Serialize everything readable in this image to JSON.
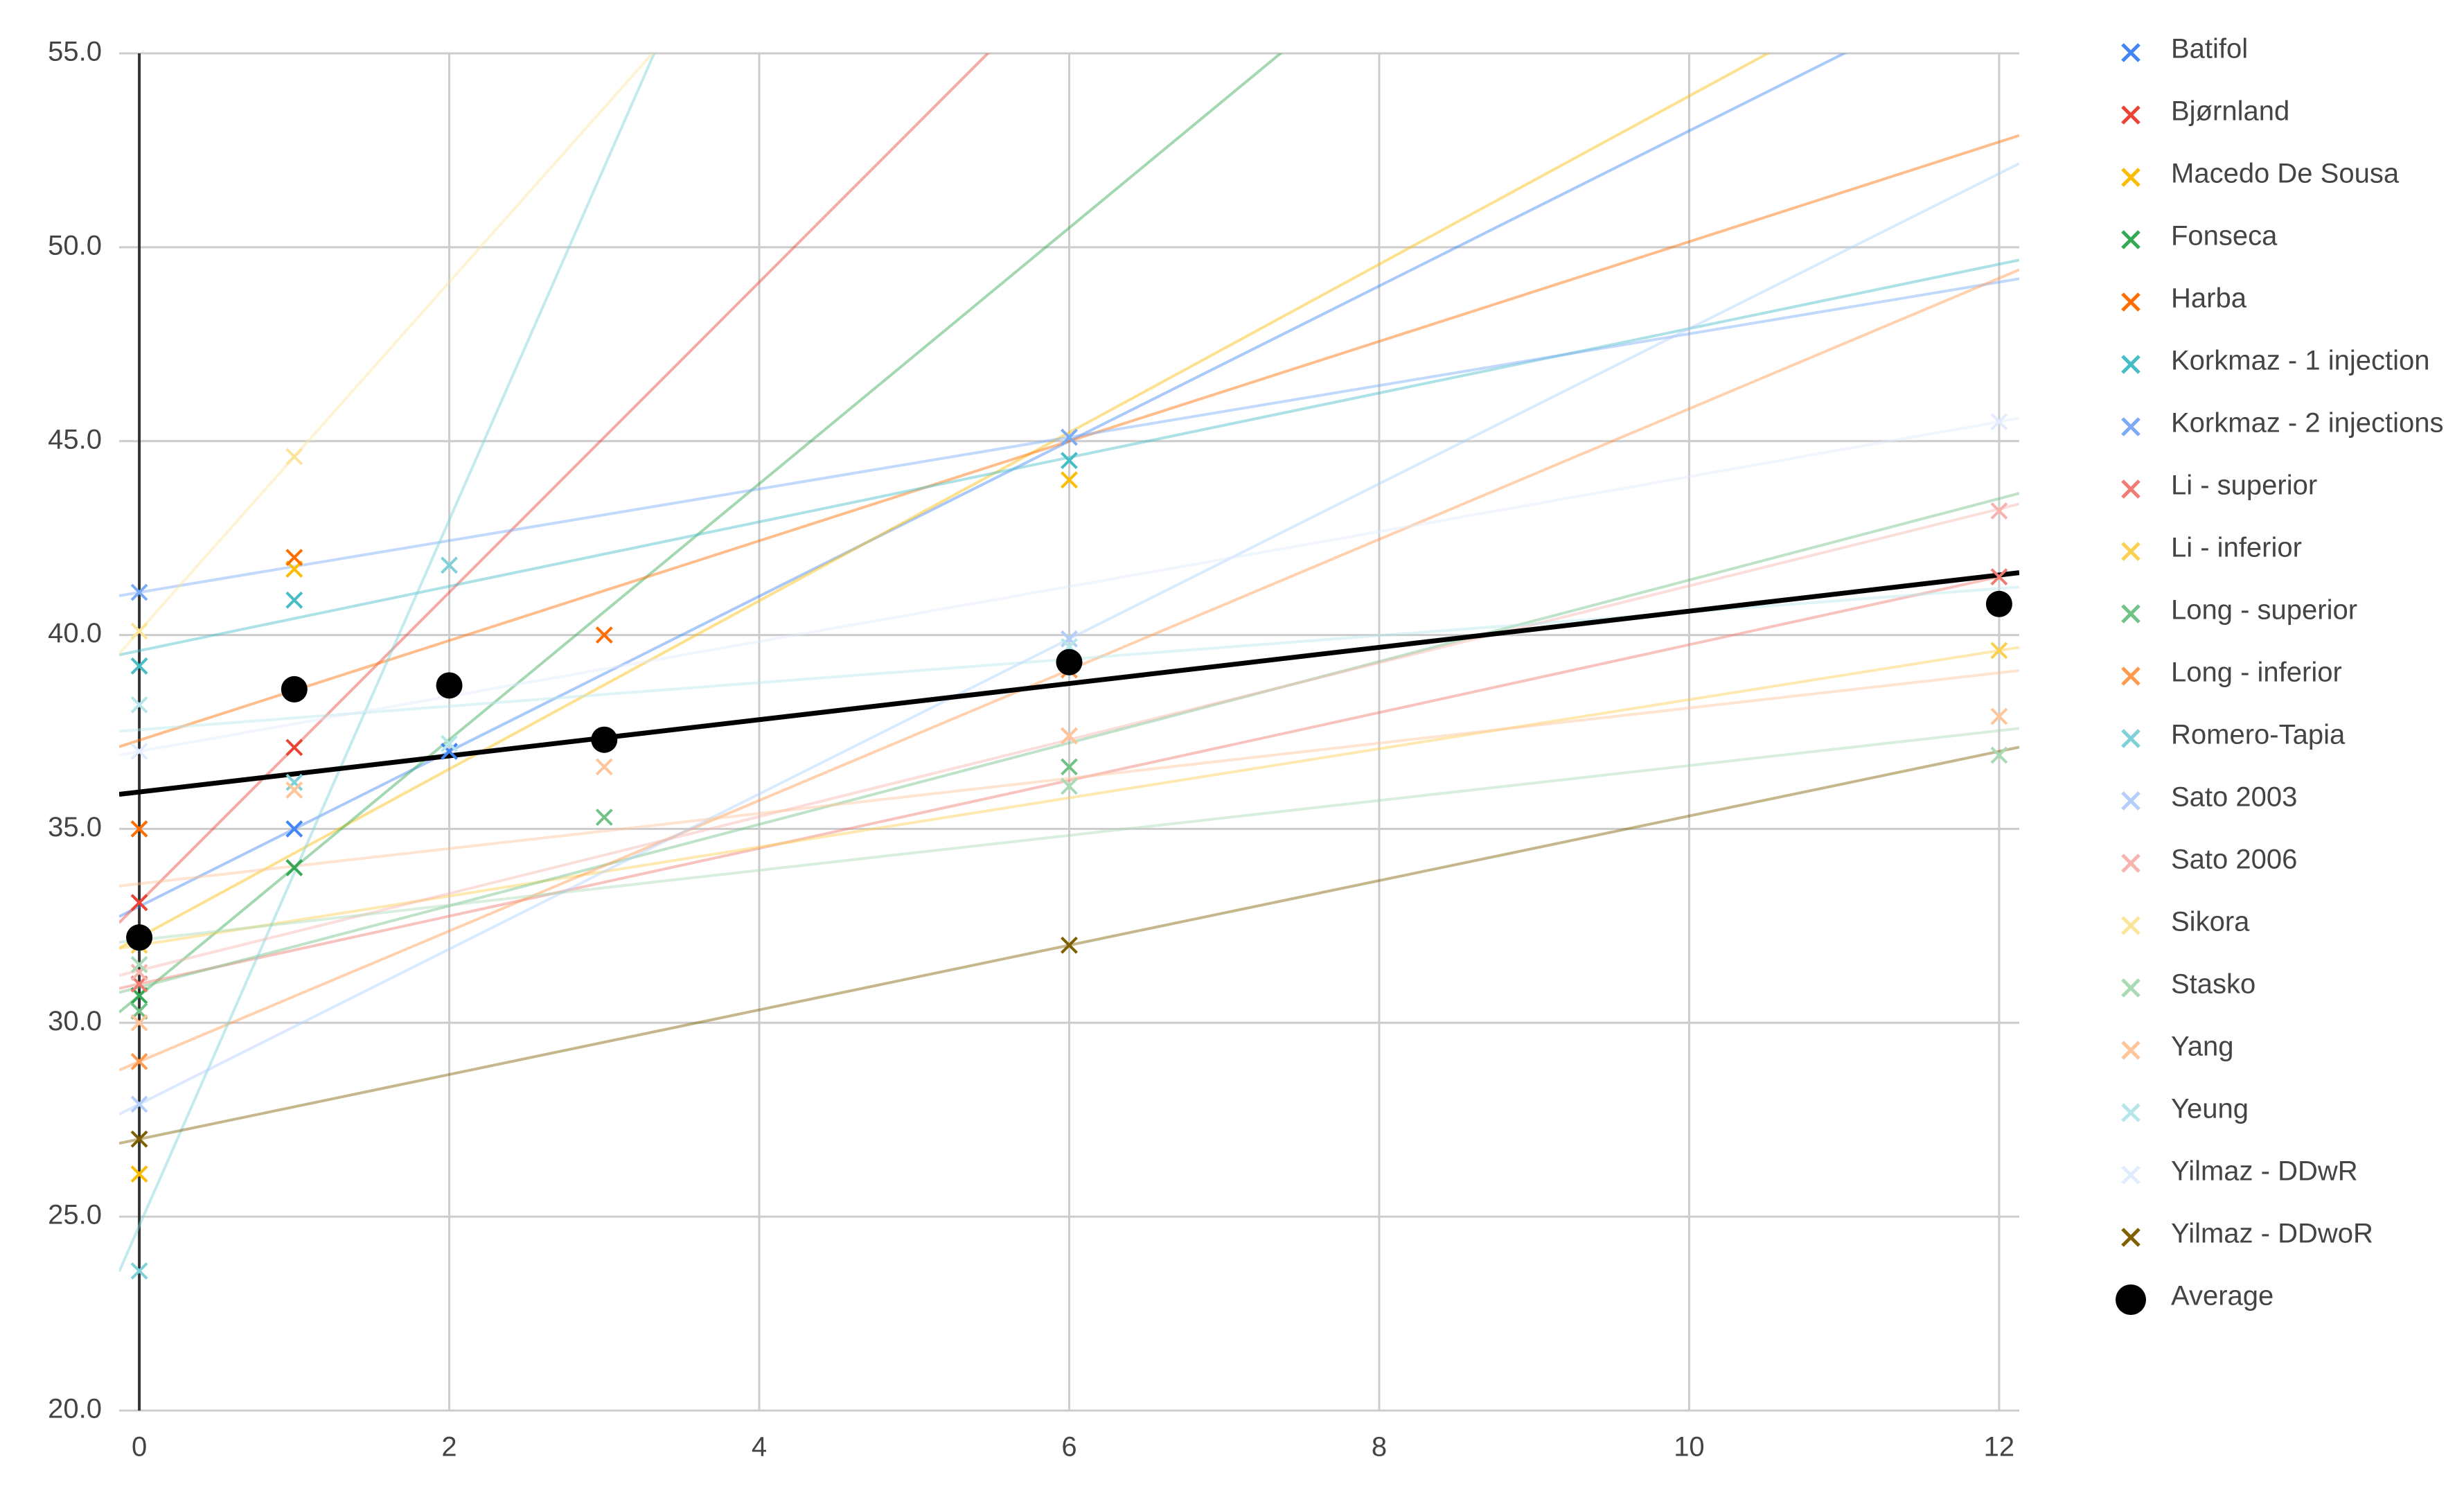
{
  "chart_data": {
    "type": "scatter",
    "trendlines": true,
    "grid": true,
    "legend": "right",
    "xlim": [
      -0.13,
      12.13
    ],
    "xticks": [
      0,
      2,
      4,
      6,
      8,
      10,
      12
    ],
    "ylim": [
      20,
      55
    ],
    "yticks": [
      {
        "value": 20,
        "label": "20.0"
      },
      {
        "value": 25,
        "label": "25.0"
      },
      {
        "value": 30,
        "label": "30.0"
      },
      {
        "value": 35,
        "label": "35.0"
      },
      {
        "value": 40,
        "label": "40.0"
      },
      {
        "value": 45,
        "label": "45.0"
      },
      {
        "value": 50,
        "label": "50.0"
      },
      {
        "value": 55,
        "label": "55.0"
      }
    ],
    "series": [
      {
        "name": "Batifol",
        "color": "#4285f4",
        "x": [
          1,
          2
        ],
        "values": [
          35.0,
          37.0
        ]
      },
      {
        "name": "Bjørnland",
        "color": "#ea4335",
        "x": [
          0,
          1
        ],
        "values": [
          33.1,
          37.1
        ]
      },
      {
        "name": "Macedo De Sousa",
        "color": "#fbbc04",
        "x": [
          0,
          1,
          6
        ],
        "values": [
          26.1,
          41.7,
          44.0
        ]
      },
      {
        "name": "Fonseca",
        "color": "#34a853",
        "x": [
          0,
          1
        ],
        "values": [
          30.7,
          34.0
        ]
      },
      {
        "name": "Harba",
        "color": "#ff6d01",
        "x": [
          0,
          1,
          3
        ],
        "values": [
          35.0,
          42.0,
          40.0
        ]
      },
      {
        "name": "Korkmaz - 1 injection",
        "color": "#46bdc6",
        "x": [
          0,
          1,
          6
        ],
        "values": [
          39.2,
          40.9,
          44.5
        ]
      },
      {
        "name": "Korkmaz - 2 injections",
        "color": "#7baaf7",
        "x": [
          0,
          6
        ],
        "values": [
          41.1,
          45.1
        ]
      },
      {
        "name": "Li - superior",
        "color": "#f07b72",
        "x": [
          0,
          12
        ],
        "values": [
          31.0,
          41.5
        ]
      },
      {
        "name": "Li - inferior",
        "color": "#fcd04f",
        "x": [
          0,
          12
        ],
        "values": [
          32.0,
          39.6
        ]
      },
      {
        "name": "Long - superior",
        "color": "#71c287",
        "x": [
          0,
          3,
          6
        ],
        "values": [
          30.3,
          35.3,
          36.6
        ]
      },
      {
        "name": "Long - inferior",
        "color": "#ff994d",
        "x": [
          0,
          6
        ],
        "values": [
          29.0,
          39.1
        ]
      },
      {
        "name": "Romero-Tapia",
        "color": "#7ed1d7",
        "x": [
          0,
          1,
          2
        ],
        "values": [
          23.6,
          36.2,
          41.8
        ]
      },
      {
        "name": "Sato 2003",
        "color": "#b3cefb",
        "x": [
          0,
          6
        ],
        "values": [
          27.9,
          39.9
        ]
      },
      {
        "name": "Sato 2006",
        "color": "#f7b4ae",
        "x": [
          0,
          6,
          12
        ],
        "values": [
          31.3,
          37.4,
          43.2
        ]
      },
      {
        "name": "Sikora",
        "color": "#fde49b",
        "x": [
          0,
          1
        ],
        "values": [
          40.1,
          44.6
        ]
      },
      {
        "name": "Stasko",
        "color": "#a8dab5",
        "x": [
          0,
          6,
          12
        ],
        "values": [
          31.5,
          36.1,
          36.9
        ]
      },
      {
        "name": "Yang",
        "color": "#ffc599",
        "x": [
          0,
          1,
          3,
          6,
          12
        ],
        "values": [
          30.0,
          36.0,
          36.6,
          37.4,
          37.9
        ]
      },
      {
        "name": "Yeung",
        "color": "#b5e6e9",
        "x": [
          0,
          2,
          6
        ],
        "values": [
          38.2,
          37.2,
          39.7
        ]
      },
      {
        "name": "Yilmaz - DDwR",
        "color": "#e1ecfd",
        "x": [
          0,
          12
        ],
        "values": [
          37.0,
          45.5
        ]
      },
      {
        "name": "Yilmaz - DDwoR",
        "color": "#7f6000",
        "x": [
          0,
          6
        ],
        "values": [
          27.0,
          32.0
        ]
      },
      {
        "name": "Average",
        "color": "#000000",
        "marker": "circle",
        "x": [
          0,
          1,
          2,
          3,
          6,
          12
        ],
        "values": [
          32.2,
          38.6,
          38.7,
          37.3,
          39.3,
          40.8
        ]
      }
    ]
  }
}
